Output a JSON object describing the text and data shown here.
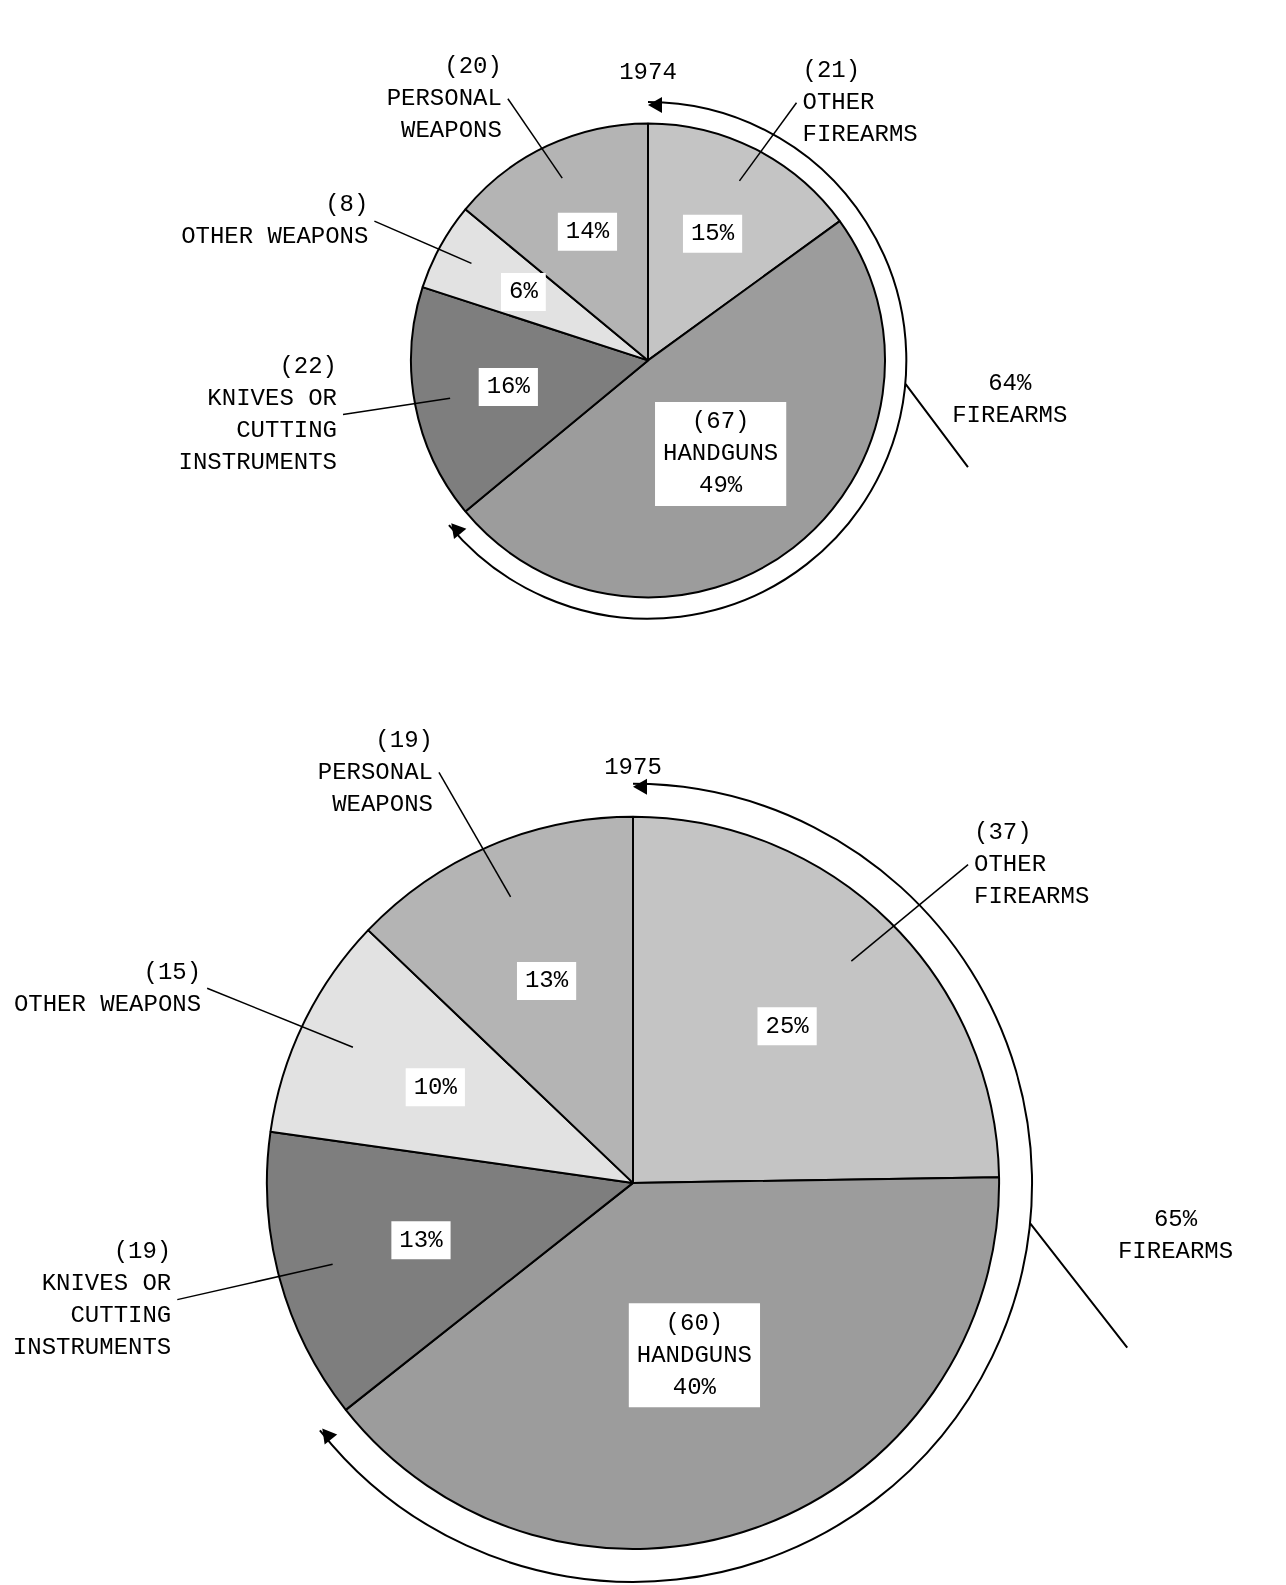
{
  "chart_data": [
    {
      "type": "pie",
      "title": "1974",
      "categories": [
        "(21)\nOTHER FIREARMS",
        "(67)\nHANDGUNS",
        "(22)\nKNIVES OR CUTTING INSTRUMENTS",
        "(8)\nOTHER WEAPONS",
        "(20)\nPERSONAL WEAPONS"
      ],
      "values": [
        15,
        49,
        16,
        6,
        14
      ],
      "value_labels": [
        "15%",
        "49%",
        "16%",
        "6%",
        "14%"
      ],
      "colors": [
        "#c4c4c4",
        "#9c9c9c",
        "#7e7e7e",
        "#e2e2e2",
        "#b4b4b4"
      ],
      "annotations": [
        "64%\nFIREARMS"
      ]
    },
    {
      "type": "pie",
      "title": "1975",
      "categories": [
        "(37)\nOTHER FIREARMS",
        "(60)\nHANDGUNS",
        "(19)\nKNIVES OR CUTTING INSTRUMENTS",
        "(15)\nOTHER WEAPONS",
        "(19)\nPERSONAL WEAPONS"
      ],
      "values": [
        25,
        40,
        13,
        10,
        13
      ],
      "value_labels": [
        "25%",
        "40%",
        "13%",
        "10%",
        "13%"
      ],
      "colors": [
        "#c4c4c4",
        "#9c9c9c",
        "#7e7e7e",
        "#e2e2e2",
        "#b4b4b4"
      ],
      "annotations": [
        "65%\nFIREARMS"
      ]
    }
  ]
}
